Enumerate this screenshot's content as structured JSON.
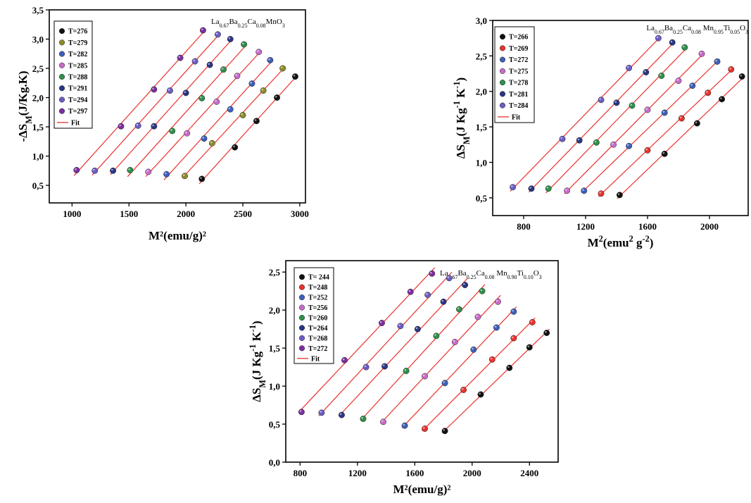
{
  "chart_data": [
    {
      "type": "scatter",
      "title": "La0.67Ba0.25Ca0.08MnO3",
      "formula": [
        [
          "La",
          ""
        ],
        [
          "0.67",
          "sub"
        ],
        [
          "Ba",
          ""
        ],
        [
          "0.25",
          "sub"
        ],
        [
          "Ca",
          ""
        ],
        [
          "0.08",
          "sub"
        ],
        [
          "MnO",
          ""
        ],
        [
          "3",
          "sub"
        ]
      ],
      "xlabel": "M²(emu/g)²",
      "xlabel_parts": [
        [
          "M²(emu/g)²",
          ""
        ]
      ],
      "ylabel": "-ΔS_M(J/Kg.K)",
      "ylabel_parts": [
        [
          "-ΔS",
          ""
        ],
        [
          "M",
          "sub"
        ],
        [
          "(J/Kg.K)",
          ""
        ]
      ],
      "xlim": [
        800,
        3050
      ],
      "ylim": [
        0.2,
        3.5
      ],
      "xticks": [
        "1000",
        "1500",
        "2000",
        "2500",
        "3000"
      ],
      "xtick_values": [
        1000,
        1500,
        2000,
        2500,
        3000
      ],
      "yticks": [
        "0,5",
        "1,0",
        "1,5",
        "2,0",
        "2,5",
        "3,0",
        "3,5"
      ],
      "ytick_values": [
        0.5,
        1.0,
        1.5,
        2.0,
        2.5,
        3.0,
        3.5
      ],
      "legend_position": "top-left",
      "fit_label": "Fit",
      "series": [
        {
          "name": "T=276",
          "color": "#111111",
          "x": [
            2140,
            2430,
            2620,
            2800,
            2960
          ],
          "y": [
            0.61,
            1.15,
            1.6,
            2.0,
            2.36
          ]
        },
        {
          "name": "T=279",
          "color": "#8c8c2a",
          "x": [
            1990,
            2230,
            2500,
            2680,
            2850
          ],
          "y": [
            0.66,
            1.22,
            1.7,
            2.12,
            2.5
          ]
        },
        {
          "name": "T=282",
          "color": "#3d5fb8",
          "x": [
            1830,
            2160,
            2390,
            2580,
            2740
          ],
          "y": [
            0.69,
            1.3,
            1.8,
            2.24,
            2.64
          ]
        },
        {
          "name": "T=285",
          "color": "#c76bc9",
          "x": [
            1670,
            2010,
            2270,
            2450,
            2640
          ],
          "y": [
            0.73,
            1.39,
            1.93,
            2.37,
            2.78
          ]
        },
        {
          "name": "T=288",
          "color": "#2f8f4a",
          "x": [
            1510,
            1880,
            2140,
            2330,
            2510
          ],
          "y": [
            0.76,
            1.43,
            1.99,
            2.48,
            2.91
          ]
        },
        {
          "name": "T=291",
          "color": "#2b3585",
          "x": [
            1360,
            1720,
            2000,
            2210,
            2390
          ],
          "y": [
            0.75,
            1.51,
            2.08,
            2.56,
            3.0
          ]
        },
        {
          "name": "T=294",
          "color": "#6b5cc4",
          "x": [
            1200,
            1580,
            1860,
            2080,
            2280
          ],
          "y": [
            0.75,
            1.52,
            2.12,
            2.62,
            3.08
          ]
        },
        {
          "name": "T=297",
          "color": "#7b2f9e",
          "x": [
            1040,
            1430,
            1720,
            1950,
            2150
          ],
          "y": [
            0.76,
            1.51,
            2.14,
            2.68,
            3.15
          ]
        }
      ]
    },
    {
      "type": "scatter",
      "title": "La0.67Ba0.25Ca0.08Mn0.95Ti0.05O3",
      "formula": [
        [
          "La",
          ""
        ],
        [
          "0.67",
          "sub"
        ],
        [
          "Ba",
          ""
        ],
        [
          "0.25",
          "sub"
        ],
        [
          "Ca",
          ""
        ],
        [
          "0.08",
          "sub"
        ],
        [
          " Mn",
          ""
        ],
        [
          "0.95",
          "sub"
        ],
        [
          "Ti",
          ""
        ],
        [
          "0.05",
          "sub"
        ],
        [
          "O",
          ""
        ],
        [
          "3",
          "sub"
        ]
      ],
      "xlabel": "M²(emu² g⁻²)",
      "xlabel_parts": [
        [
          "M",
          ""
        ],
        [
          "2",
          "sup"
        ],
        [
          "(emu",
          ""
        ],
        [
          "2",
          "sup"
        ],
        [
          " g",
          ""
        ],
        [
          "-2",
          "sup"
        ],
        [
          ")",
          ""
        ]
      ],
      "ylabel": "ΔS_M(J Kg⁻¹ K⁻¹)",
      "ylabel_parts": [
        [
          "ΔS",
          ""
        ],
        [
          "M",
          "sub"
        ],
        [
          "(J Kg",
          ""
        ],
        [
          "-1",
          "sup"
        ],
        [
          " K",
          ""
        ],
        [
          "-1",
          "sup"
        ],
        [
          ")",
          ""
        ]
      ],
      "xlim": [
        600,
        2250
      ],
      "ylim": [
        0.25,
        3.0
      ],
      "xticks": [
        "800",
        "1200",
        "1600",
        "2000"
      ],
      "xtick_values": [
        800,
        1200,
        1600,
        2000
      ],
      "yticks": [
        "0,5",
        "1,0",
        "1,5",
        "2,0",
        "2,5",
        "3,0"
      ],
      "ytick_values": [
        0.5,
        1.0,
        1.5,
        2.0,
        2.5,
        3.0
      ],
      "legend_position": "top-left",
      "fit_label": "Fit",
      "series": [
        {
          "name": "T=266",
          "color": "#111111",
          "x": [
            1420,
            1710,
            1920,
            2080,
            2210
          ],
          "y": [
            0.54,
            1.12,
            1.55,
            1.89,
            2.21
          ]
        },
        {
          "name": "T=269",
          "color": "#e8322c",
          "x": [
            1300,
            1600,
            1820,
            1990,
            2140
          ],
          "y": [
            0.56,
            1.17,
            1.62,
            1.98,
            2.31
          ]
        },
        {
          "name": "T=272",
          "color": "#3d5fb8",
          "x": [
            1190,
            1480,
            1710,
            1890,
            2050
          ],
          "y": [
            0.6,
            1.23,
            1.7,
            2.08,
            2.42
          ]
        },
        {
          "name": "T=275",
          "color": "#c76bc9",
          "x": [
            1080,
            1380,
            1600,
            1800,
            1950
          ],
          "y": [
            0.6,
            1.25,
            1.74,
            2.15,
            2.53
          ]
        },
        {
          "name": "T=278",
          "color": "#2f8f4a",
          "x": [
            960,
            1270,
            1500,
            1690,
            1840
          ],
          "y": [
            0.63,
            1.28,
            1.8,
            2.22,
            2.62
          ]
        },
        {
          "name": "T=281",
          "color": "#2b3585",
          "x": [
            850,
            1160,
            1400,
            1590,
            1760
          ],
          "y": [
            0.63,
            1.31,
            1.84,
            2.27,
            2.69
          ]
        },
        {
          "name": "T=284",
          "color": "#6b5cc4",
          "x": [
            730,
            1050,
            1300,
            1480,
            1670
          ],
          "y": [
            0.65,
            1.33,
            1.88,
            2.33,
            2.75
          ]
        }
      ]
    },
    {
      "type": "scatter",
      "title": "La0.67Ba0.25Ca0.08Mn0.90Ti0.10O3",
      "formula": [
        [
          "La",
          ""
        ],
        [
          "0.67",
          "sub"
        ],
        [
          "Ba",
          ""
        ],
        [
          "0.25",
          "sub"
        ],
        [
          "Ca",
          ""
        ],
        [
          "0.08",
          "sub"
        ],
        [
          " Mn",
          ""
        ],
        [
          "0.90",
          "sub"
        ],
        [
          "Ti",
          ""
        ],
        [
          "0.10",
          "sub"
        ],
        [
          "O",
          ""
        ],
        [
          "3",
          "sub"
        ]
      ],
      "xlabel": "M²(emu/g)²",
      "xlabel_parts": [
        [
          "M²(emu/g)²",
          ""
        ]
      ],
      "ylabel": "ΔS_M(J Kg⁻¹ K⁻¹)",
      "ylabel_parts": [
        [
          "ΔS",
          ""
        ],
        [
          "M",
          "sub"
        ],
        [
          "(J Kg",
          ""
        ],
        [
          "-1",
          "sup"
        ],
        [
          " K",
          ""
        ],
        [
          "-1",
          "sup"
        ],
        [
          ")",
          ""
        ]
      ],
      "xlim": [
        700,
        2600
      ],
      "ylim": [
        0.0,
        2.65
      ],
      "xticks": [
        "800",
        "1200",
        "1600",
        "2000",
        "2400"
      ],
      "xtick_values": [
        800,
        1200,
        1600,
        2000,
        2400
      ],
      "yticks": [
        "0,0",
        "0,5",
        "1,0",
        "1,5",
        "2,0",
        "2,5"
      ],
      "ytick_values": [
        0.0,
        0.5,
        1.0,
        1.5,
        2.0,
        2.5
      ],
      "legend_position": "top-left",
      "fit_label": "Fit",
      "series": [
        {
          "name": "T= 244",
          "color": "#111111",
          "x": [
            1810,
            2060,
            2260,
            2400,
            2520
          ],
          "y": [
            0.41,
            0.89,
            1.24,
            1.51,
            1.7
          ]
        },
        {
          "name": "T=248",
          "color": "#e8322c",
          "x": [
            1670,
            1940,
            2140,
            2290,
            2420
          ],
          "y": [
            0.44,
            0.95,
            1.35,
            1.63,
            1.84
          ]
        },
        {
          "name": "T=252",
          "color": "#3d5fb8",
          "x": [
            1530,
            1810,
            2010,
            2170,
            2290
          ],
          "y": [
            0.48,
            1.04,
            1.48,
            1.77,
            1.98
          ]
        },
        {
          "name": "T=256",
          "color": "#c76bc9",
          "x": [
            1380,
            1670,
            1880,
            2040,
            2180
          ],
          "y": [
            0.53,
            1.13,
            1.58,
            1.91,
            2.11
          ]
        },
        {
          "name": "T=260",
          "color": "#2f8f4a",
          "x": [
            1240,
            1540,
            1750,
            1910,
            2070
          ],
          "y": [
            0.57,
            1.2,
            1.66,
            2.01,
            2.25
          ]
        },
        {
          "name": "T=264",
          "color": "#2b3585",
          "x": [
            1090,
            1390,
            1620,
            1800,
            1950
          ],
          "y": [
            0.62,
            1.26,
            1.75,
            2.11,
            2.33
          ]
        },
        {
          "name": "T=268",
          "color": "#6b5cc4",
          "x": [
            950,
            1260,
            1500,
            1690,
            1840
          ],
          "y": [
            0.65,
            1.25,
            1.79,
            2.2,
            2.42
          ]
        },
        {
          "name": "T=272",
          "color": "#7b2f9e",
          "x": [
            810,
            1110,
            1370,
            1570,
            1720
          ],
          "y": [
            0.66,
            1.34,
            1.83,
            2.24,
            2.48
          ]
        }
      ]
    }
  ]
}
